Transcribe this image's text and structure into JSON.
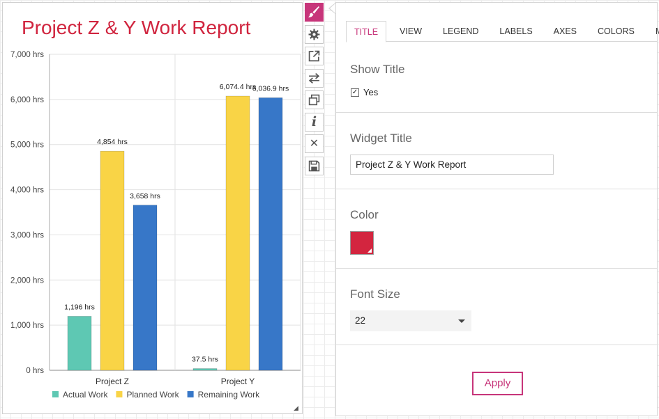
{
  "widget": {
    "title": "Project Z & Y Work Report",
    "title_color": "#d0243e",
    "resize_glyph": "◢"
  },
  "chart_data": {
    "type": "bar",
    "categories": [
      "Project Z",
      "Project Y"
    ],
    "series": [
      {
        "name": "Actual Work",
        "color": "#5ec8b3",
        "values": [
          1196,
          37.5
        ],
        "labels": [
          "1,196 hrs",
          "37.5 hrs"
        ]
      },
      {
        "name": "Planned Work",
        "color": "#f9d446",
        "values": [
          4854,
          6074.4
        ],
        "labels": [
          "4,854 hrs",
          "6,074.4 hrs"
        ]
      },
      {
        "name": "Remaining Work",
        "color": "#3777c8",
        "values": [
          3658,
          6036.9
        ],
        "labels": [
          "3,658 hrs",
          "6,036.9 hrs"
        ]
      }
    ],
    "y_ticks": [
      {
        "value": 0,
        "label": "0 hrs"
      },
      {
        "value": 1000,
        "label": "1,000 hrs"
      },
      {
        "value": 2000,
        "label": "2,000 hrs"
      },
      {
        "value": 3000,
        "label": "3,000 hrs"
      },
      {
        "value": 4000,
        "label": "4,000 hrs"
      },
      {
        "value": 5000,
        "label": "5,000 hrs"
      },
      {
        "value": 6000,
        "label": "6,000 hrs"
      },
      {
        "value": 7000,
        "label": "7,000 hrs"
      }
    ],
    "ylim": [
      0,
      7000
    ],
    "grid": true,
    "legend_position": "bottom"
  },
  "toolbar": {
    "items": [
      {
        "name": "paintbrush-icon",
        "active": true
      },
      {
        "name": "gear-icon",
        "active": false
      },
      {
        "name": "external-link-icon",
        "active": false
      },
      {
        "name": "swap-arrows-icon",
        "active": false
      },
      {
        "name": "duplicate-icon",
        "active": false
      },
      {
        "name": "info-icon",
        "glyph": "i",
        "active": false
      },
      {
        "name": "close-icon",
        "glyph": "✕",
        "active": false
      },
      {
        "name": "save-icon",
        "active": false
      }
    ]
  },
  "panel": {
    "tabs": [
      "TITLE",
      "VIEW",
      "LEGEND",
      "LABELS",
      "AXES",
      "COLORS",
      "MISC"
    ],
    "active_tab": "TITLE",
    "accent_color": "#c7357a",
    "show_title": {
      "label": "Show Title",
      "checkbox_label": "Yes",
      "checked": true,
      "check_glyph": "✓"
    },
    "widget_title": {
      "label": "Widget Title",
      "value": "Project Z & Y Work Report"
    },
    "color": {
      "label": "Color",
      "value": "#d3253f"
    },
    "font_size": {
      "label": "Font Size",
      "value": "22"
    },
    "apply_label": "Apply"
  }
}
